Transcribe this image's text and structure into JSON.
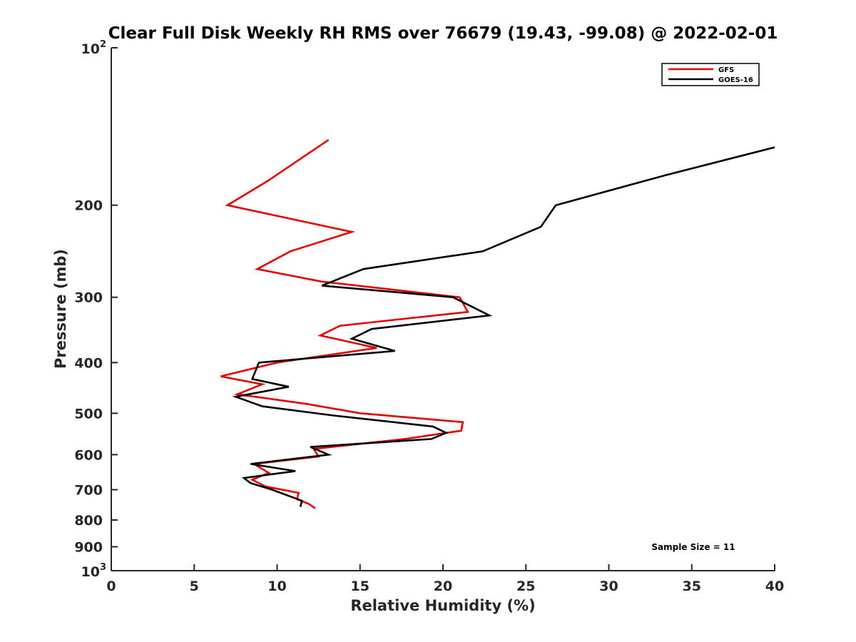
{
  "chart_data": {
    "type": "line",
    "title": "Clear Full Disk Weekly RH RMS over 76679 (19.43, -99.08) @ 2022-02-01",
    "xlabel": "Relative Humidity (%)",
    "ylabel": "Pressure (mb)",
    "xlim": [
      0,
      40
    ],
    "ylim": [
      100,
      1000
    ],
    "y_scale": "log",
    "y_reversed": true,
    "grid": false,
    "legend_position": "top-right",
    "x_ticks": [
      "0",
      "5",
      "10",
      "15",
      "20",
      "25",
      "30",
      "35",
      "40"
    ],
    "y_ticks": [
      {
        "value": 100,
        "base": "10",
        "sup": "2"
      },
      {
        "value": 200,
        "label": "200"
      },
      {
        "value": 300,
        "label": "300"
      },
      {
        "value": 400,
        "label": "400"
      },
      {
        "value": 500,
        "label": "500"
      },
      {
        "value": 600,
        "label": "600"
      },
      {
        "value": 700,
        "label": "700"
      },
      {
        "value": 800,
        "label": "800"
      },
      {
        "value": 900,
        "label": "900"
      },
      {
        "value": 1000,
        "base": "10",
        "sup": "3"
      }
    ],
    "series": [
      {
        "name": "GFS",
        "color": "#e00000",
        "points": [
          [
            13.1,
            150
          ],
          [
            9.4,
            180
          ],
          [
            7.0,
            200
          ],
          [
            14.5,
            225
          ],
          [
            10.8,
            245
          ],
          [
            8.8,
            265
          ],
          [
            12.7,
            280
          ],
          [
            21.0,
            300
          ],
          [
            21.5,
            320
          ],
          [
            13.8,
            340
          ],
          [
            12.6,
            355
          ],
          [
            16.0,
            375
          ],
          [
            10.0,
            400
          ],
          [
            6.6,
            425
          ],
          [
            9.1,
            440
          ],
          [
            7.6,
            460
          ],
          [
            11.8,
            480
          ],
          [
            15.0,
            500
          ],
          [
            21.2,
            520
          ],
          [
            21.1,
            540
          ],
          [
            17.7,
            560
          ],
          [
            12.2,
            585
          ],
          [
            12.5,
            605
          ],
          [
            8.6,
            625
          ],
          [
            9.5,
            650
          ],
          [
            8.5,
            670
          ],
          [
            9.3,
            690
          ],
          [
            11.3,
            710
          ],
          [
            11.2,
            730
          ],
          [
            11.9,
            745
          ],
          [
            12.3,
            760
          ]
        ]
      },
      {
        "name": "GOES-16",
        "color": "#000000",
        "points": [
          [
            40.0,
            155
          ],
          [
            33.5,
            175
          ],
          [
            26.8,
            200
          ],
          [
            25.9,
            220
          ],
          [
            22.4,
            245
          ],
          [
            15.2,
            265
          ],
          [
            12.7,
            285
          ],
          [
            20.6,
            300
          ],
          [
            22.8,
            325
          ],
          [
            15.7,
            345
          ],
          [
            14.5,
            360
          ],
          [
            17.1,
            380
          ],
          [
            8.9,
            400
          ],
          [
            8.5,
            430
          ],
          [
            10.7,
            445
          ],
          [
            7.5,
            465
          ],
          [
            9.1,
            485
          ],
          [
            13.4,
            505
          ],
          [
            19.4,
            530
          ],
          [
            20.2,
            545
          ],
          [
            19.3,
            560
          ],
          [
            12.0,
            580
          ],
          [
            13.1,
            600
          ],
          [
            8.4,
            625
          ],
          [
            11.1,
            645
          ],
          [
            8.0,
            665
          ],
          [
            8.4,
            680
          ],
          [
            9.7,
            700
          ],
          [
            11.5,
            735
          ],
          [
            11.4,
            755
          ]
        ]
      }
    ],
    "annotations": [
      "Sample Size = 11"
    ]
  }
}
